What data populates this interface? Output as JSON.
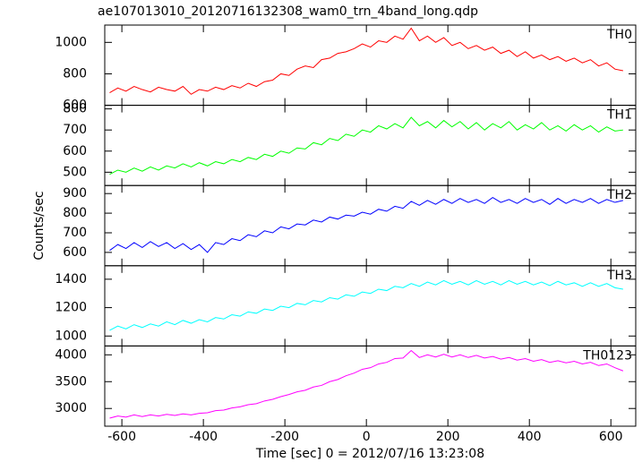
{
  "chart_data": [
    {
      "type": "line",
      "title": "ae107013010_20120716132308_wam0_trn_4band_long.qdp",
      "x": [
        -630,
        -610,
        -590,
        -570,
        -550,
        -530,
        -510,
        -490,
        -470,
        -450,
        -430,
        -410,
        -390,
        -370,
        -350,
        -330,
        -310,
        -290,
        -270,
        -250,
        -230,
        -210,
        -190,
        -170,
        -150,
        -130,
        -110,
        -90,
        -70,
        -50,
        -30,
        -10,
        10,
        30,
        50,
        70,
        90,
        110,
        130,
        150,
        170,
        190,
        210,
        230,
        250,
        270,
        290,
        310,
        330,
        350,
        370,
        390,
        410,
        430,
        450,
        470,
        490,
        510,
        530,
        550,
        570,
        590,
        610,
        630
      ],
      "series": [
        {
          "name": "TH0",
          "color": "#ff0000",
          "values": [
            680,
            710,
            690,
            720,
            700,
            685,
            715,
            700,
            690,
            720,
            670,
            700,
            690,
            715,
            700,
            725,
            710,
            740,
            720,
            750,
            760,
            800,
            790,
            830,
            850,
            840,
            890,
            900,
            930,
            940,
            960,
            990,
            970,
            1010,
            1000,
            1040,
            1020,
            1090,
            1010,
            1040,
            1000,
            1030,
            980,
            1000,
            960,
            980,
            950,
            970,
            930,
            950,
            910,
            940,
            900,
            920,
            890,
            910,
            880,
            900,
            870,
            890,
            850,
            870,
            830,
            820
          ]
        }
      ],
      "xlim": [
        -642,
        661
      ],
      "ylim": [
        600,
        1110
      ],
      "yticks": [
        600,
        800,
        1000
      ]
    },
    {
      "type": "line",
      "x": [
        -630,
        -610,
        -590,
        -570,
        -550,
        -530,
        -510,
        -490,
        -470,
        -450,
        -430,
        -410,
        -390,
        -370,
        -350,
        -330,
        -310,
        -290,
        -270,
        -250,
        -230,
        -210,
        -190,
        -170,
        -150,
        -130,
        -110,
        -90,
        -70,
        -50,
        -30,
        -10,
        10,
        30,
        50,
        70,
        90,
        110,
        130,
        150,
        170,
        190,
        210,
        230,
        250,
        270,
        290,
        310,
        330,
        350,
        370,
        390,
        410,
        430,
        450,
        470,
        490,
        510,
        530,
        550,
        570,
        590,
        610,
        630
      ],
      "series": [
        {
          "name": "TH1",
          "color": "#00ff00",
          "values": [
            490,
            510,
            500,
            520,
            505,
            525,
            510,
            530,
            520,
            540,
            525,
            545,
            530,
            550,
            540,
            560,
            550,
            570,
            560,
            585,
            575,
            600,
            590,
            615,
            610,
            640,
            630,
            660,
            650,
            680,
            670,
            700,
            690,
            720,
            705,
            730,
            710,
            760,
            720,
            740,
            710,
            745,
            715,
            740,
            705,
            735,
            700,
            730,
            710,
            740,
            700,
            725,
            705,
            735,
            700,
            720,
            695,
            725,
            700,
            720,
            690,
            715,
            695,
            700
          ]
        }
      ],
      "xlim": [
        -642,
        661
      ],
      "ylim": [
        437,
        817
      ],
      "yticks": [
        500,
        600,
        700,
        800
      ]
    },
    {
      "type": "line",
      "ylabel": "Counts/sec",
      "x": [
        -630,
        -610,
        -590,
        -570,
        -550,
        -530,
        -510,
        -490,
        -470,
        -450,
        -430,
        -410,
        -390,
        -370,
        -350,
        -330,
        -310,
        -290,
        -270,
        -250,
        -230,
        -210,
        -190,
        -170,
        -150,
        -130,
        -110,
        -90,
        -70,
        -50,
        -30,
        -10,
        10,
        30,
        50,
        70,
        90,
        110,
        130,
        150,
        170,
        190,
        210,
        230,
        250,
        270,
        290,
        310,
        330,
        350,
        370,
        390,
        410,
        430,
        450,
        470,
        490,
        510,
        530,
        550,
        570,
        590,
        610,
        630
      ],
      "series": [
        {
          "name": "TH2",
          "color": "#0000ff",
          "values": [
            610,
            640,
            620,
            650,
            625,
            655,
            630,
            650,
            620,
            645,
            615,
            640,
            600,
            650,
            640,
            670,
            660,
            690,
            680,
            710,
            700,
            730,
            720,
            745,
            740,
            765,
            755,
            780,
            770,
            790,
            785,
            805,
            795,
            820,
            810,
            835,
            825,
            860,
            840,
            865,
            845,
            870,
            850,
            875,
            855,
            870,
            850,
            880,
            855,
            870,
            850,
            875,
            855,
            870,
            845,
            875,
            850,
            870,
            855,
            875,
            850,
            870,
            855,
            865
          ]
        }
      ],
      "xlim": [
        -642,
        661
      ],
      "ylim": [
        532,
        941
      ],
      "yticks": [
        600,
        700,
        800,
        900
      ]
    },
    {
      "type": "line",
      "x": [
        -630,
        -610,
        -590,
        -570,
        -550,
        -530,
        -510,
        -490,
        -470,
        -450,
        -430,
        -410,
        -390,
        -370,
        -350,
        -330,
        -310,
        -290,
        -270,
        -250,
        -230,
        -210,
        -190,
        -170,
        -150,
        -130,
        -110,
        -90,
        -70,
        -50,
        -30,
        -10,
        10,
        30,
        50,
        70,
        90,
        110,
        130,
        150,
        170,
        190,
        210,
        230,
        250,
        270,
        290,
        310,
        330,
        350,
        370,
        390,
        410,
        430,
        450,
        470,
        490,
        510,
        530,
        550,
        570,
        590,
        610,
        630
      ],
      "series": [
        {
          "name": "TH3",
          "color": "#00ffff",
          "values": [
            1040,
            1070,
            1050,
            1080,
            1060,
            1085,
            1070,
            1100,
            1080,
            1110,
            1090,
            1115,
            1100,
            1130,
            1120,
            1150,
            1140,
            1170,
            1160,
            1190,
            1180,
            1210,
            1200,
            1230,
            1220,
            1250,
            1240,
            1270,
            1260,
            1290,
            1280,
            1310,
            1300,
            1330,
            1320,
            1350,
            1340,
            1370,
            1350,
            1380,
            1360,
            1390,
            1365,
            1385,
            1360,
            1390,
            1365,
            1385,
            1360,
            1390,
            1365,
            1385,
            1360,
            1380,
            1355,
            1385,
            1360,
            1375,
            1350,
            1375,
            1350,
            1370,
            1340,
            1330
          ]
        }
      ],
      "xlim": [
        -642,
        661
      ],
      "ylim": [
        930,
        1495
      ],
      "yticks": [
        1000,
        1200,
        1400
      ]
    },
    {
      "type": "line",
      "xlabel": "Time [sec] 0 = 2012/07/16 13:23:08",
      "x": [
        -630,
        -610,
        -590,
        -570,
        -550,
        -530,
        -510,
        -490,
        -470,
        -450,
        -430,
        -410,
        -390,
        -370,
        -350,
        -330,
        -310,
        -290,
        -270,
        -250,
        -230,
        -210,
        -190,
        -170,
        -150,
        -130,
        -110,
        -90,
        -70,
        -50,
        -30,
        -10,
        10,
        30,
        50,
        70,
        90,
        110,
        130,
        150,
        170,
        190,
        210,
        230,
        250,
        270,
        290,
        310,
        330,
        350,
        370,
        390,
        410,
        430,
        450,
        470,
        490,
        510,
        530,
        550,
        570,
        590,
        610,
        630
      ],
      "series": [
        {
          "name": "TH0123",
          "color": "#ff00ff",
          "values": [
            2820,
            2860,
            2840,
            2880,
            2850,
            2880,
            2860,
            2890,
            2870,
            2900,
            2880,
            2910,
            2920,
            2960,
            2970,
            3010,
            3030,
            3070,
            3090,
            3140,
            3170,
            3220,
            3260,
            3310,
            3340,
            3400,
            3430,
            3500,
            3540,
            3610,
            3660,
            3730,
            3760,
            3830,
            3860,
            3930,
            3940,
            4080,
            3950,
            4000,
            3960,
            4010,
            3960,
            4000,
            3950,
            3990,
            3940,
            3970,
            3920,
            3950,
            3900,
            3930,
            3880,
            3910,
            3860,
            3890,
            3850,
            3880,
            3830,
            3860,
            3800,
            3830,
            3760,
            3700
          ]
        }
      ],
      "xlim": [
        -642,
        661
      ],
      "ylim": [
        2670,
        4165
      ],
      "yticks": [
        3000,
        3500,
        4000
      ],
      "xticks": [
        -600,
        -400,
        -200,
        0,
        200,
        400,
        600
      ]
    }
  ]
}
